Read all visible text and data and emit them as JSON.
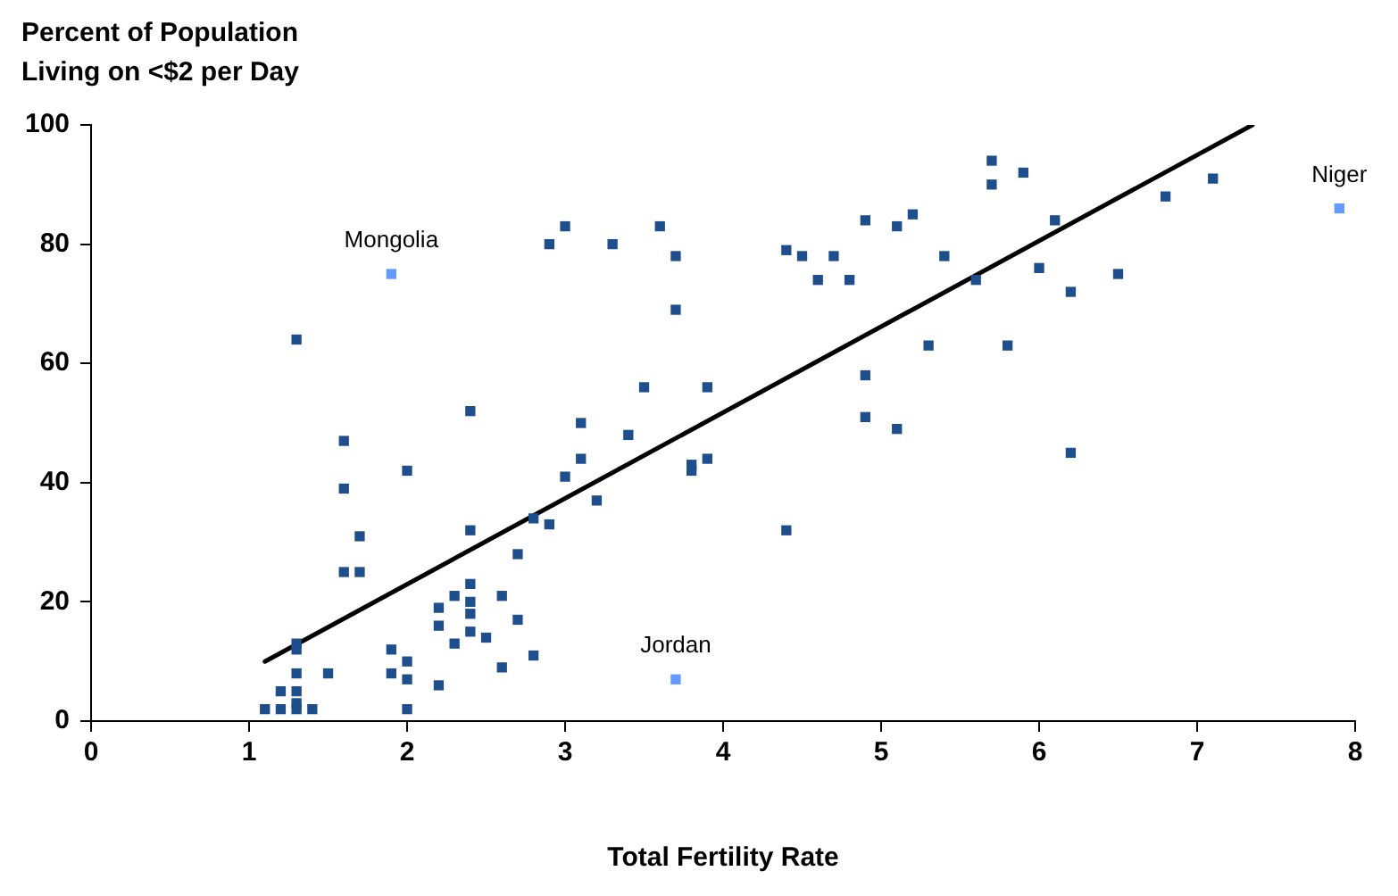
{
  "chart_data": {
    "type": "scatter",
    "ylabel": "Percent of Population\nLiving on <$2 per Day",
    "xlabel": "Total Fertility Rate",
    "xlim": [
      0,
      8
    ],
    "xticks": [
      0,
      1,
      2,
      3,
      4,
      5,
      6,
      7,
      8
    ],
    "ylim": [
      0,
      100
    ],
    "yticks": [
      0,
      20,
      40,
      60,
      80,
      100
    ],
    "grid": false,
    "legend": false,
    "marker": "square",
    "series": [
      {
        "color": "#1f4e8c",
        "x": [
          1.1,
          1.2,
          1.2,
          1.3,
          1.3,
          1.3,
          1.3,
          1.3,
          1.3,
          1.3,
          1.4,
          1.5,
          1.6,
          1.6,
          1.6,
          1.7,
          1.7,
          1.9,
          1.9,
          2.0,
          2.0,
          2.0,
          2.0,
          2.2,
          2.2,
          2.2,
          2.3,
          2.3,
          2.4,
          2.4,
          2.4,
          2.4,
          2.4,
          2.4,
          2.5,
          2.6,
          2.6,
          2.7,
          2.7,
          2.8,
          2.8,
          2.9,
          2.9,
          3.0,
          3.0,
          3.1,
          3.1,
          3.2,
          3.3,
          3.4,
          3.5,
          3.6,
          3.7,
          3.7,
          3.8,
          3.8,
          3.9,
          3.9,
          4.4,
          4.4,
          4.5,
          4.6,
          4.7,
          4.8,
          4.9,
          4.9,
          4.9,
          5.1,
          5.1,
          5.2,
          5.3,
          5.4,
          5.6,
          5.7,
          5.7,
          5.8,
          5.9,
          6.0,
          6.1,
          6.2,
          6.2,
          6.5,
          6.8,
          7.1
        ],
        "values": [
          2,
          2,
          5,
          2,
          3,
          5,
          8,
          12,
          13,
          64,
          2,
          8,
          25,
          39,
          47,
          31,
          25,
          12,
          8,
          2,
          7,
          10,
          42,
          6,
          16,
          19,
          13,
          21,
          15,
          18,
          20,
          23,
          32,
          52,
          14,
          9,
          21,
          17,
          28,
          11,
          34,
          33,
          80,
          41,
          83,
          44,
          50,
          37,
          80,
          48,
          56,
          83,
          78,
          69,
          42,
          43,
          44,
          56,
          32,
          79,
          78,
          74,
          78,
          74,
          84,
          58,
          51,
          83,
          49,
          85,
          63,
          78,
          74,
          94,
          90,
          63,
          92,
          76,
          84,
          72,
          45,
          75,
          88,
          91
        ]
      },
      {
        "color": "#6699ff",
        "x": [
          1.9,
          3.7,
          7.9
        ],
        "values": [
          75,
          7,
          86
        ]
      },
      {
        "type": "line",
        "color": "#000000",
        "marker": "none",
        "x": [
          1.1,
          7.35
        ],
        "values": [
          10,
          100
        ]
      }
    ],
    "annotations": [
      {
        "text": "Mongolia",
        "x": 1.9,
        "y": 75
      },
      {
        "text": "Jordan",
        "x": 3.7,
        "y": 7
      },
      {
        "text": "Niger",
        "x": 7.9,
        "y": 86
      }
    ]
  }
}
